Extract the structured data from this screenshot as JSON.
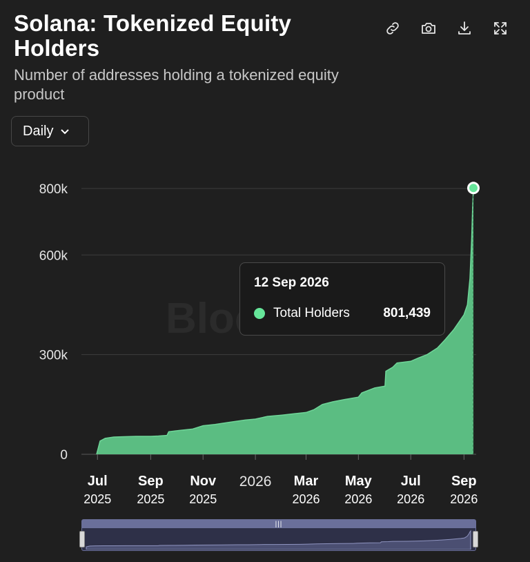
{
  "header": {
    "title": "Solana: Tokenized Equity Holders",
    "subtitle": "Number of addresses holding a tokenized equity product"
  },
  "toolbar": {
    "buttons": [
      {
        "name": "link-button",
        "icon": "link-icon"
      },
      {
        "name": "screenshot-button",
        "icon": "camera-icon"
      },
      {
        "name": "download-button",
        "icon": "download-icon"
      },
      {
        "name": "fullscreen-button",
        "icon": "expand-icon"
      }
    ]
  },
  "interval": {
    "selected": "Daily"
  },
  "watermark": "Block",
  "tooltip": {
    "date": "12 Sep 2026",
    "series": "Total Holders",
    "value": "801,439"
  },
  "chart_data": {
    "type": "area",
    "series": [
      {
        "name": "Total Holders",
        "color": "#5bbd82"
      }
    ],
    "x": [
      "2025-06-30",
      "2025-07-04",
      "2025-07-10",
      "2025-07-20",
      "2025-08-01",
      "2025-08-15",
      "2025-09-01",
      "2025-09-10",
      "2025-09-20",
      "2025-09-22",
      "2025-10-05",
      "2025-10-20",
      "2025-11-01",
      "2025-11-15",
      "2025-12-01",
      "2025-12-20",
      "2026-01-01",
      "2026-01-15",
      "2026-02-01",
      "2026-02-15",
      "2026-03-01",
      "2026-03-10",
      "2026-03-20",
      "2026-04-01",
      "2026-04-15",
      "2026-05-01",
      "2026-05-05",
      "2026-05-20",
      "2026-06-01",
      "2026-06-02",
      "2026-06-10",
      "2026-06-15",
      "2026-07-01",
      "2026-07-10",
      "2026-07-20",
      "2026-08-01",
      "2026-08-10",
      "2026-08-20",
      "2026-09-01",
      "2026-09-05",
      "2026-09-08",
      "2026-09-10",
      "2026-09-11",
      "2026-09-12"
    ],
    "y": [
      0,
      40000,
      48000,
      52000,
      53000,
      54000,
      54000,
      55000,
      57000,
      68000,
      72000,
      76000,
      86000,
      90000,
      96000,
      103000,
      106000,
      114000,
      118000,
      122000,
      126000,
      134000,
      150000,
      158000,
      165000,
      172000,
      185000,
      200000,
      205000,
      250000,
      262000,
      275000,
      280000,
      290000,
      300000,
      320000,
      345000,
      375000,
      420000,
      450000,
      530000,
      650000,
      740000,
      801439
    ],
    "yticks": [
      "0",
      "300k",
      "600k",
      "800k"
    ],
    "ytick_values": [
      0,
      300000,
      600000,
      800000
    ],
    "ylim": [
      0,
      800000
    ],
    "xticks": [
      {
        "date": "2025-07-01",
        "month": "Jul",
        "year": "2025"
      },
      {
        "date": "2025-09-01",
        "month": "Sep",
        "year": "2025"
      },
      {
        "date": "2025-11-01",
        "month": "Nov",
        "year": "2025"
      },
      {
        "date": "2026-01-01",
        "month": "2026",
        "year": ""
      },
      {
        "date": "2026-03-01",
        "month": "Mar",
        "year": "2026"
      },
      {
        "date": "2026-05-01",
        "month": "May",
        "year": "2026"
      },
      {
        "date": "2026-07-01",
        "month": "Jul",
        "year": "2026"
      },
      {
        "date": "2026-09-01",
        "month": "Sep",
        "year": "2026"
      }
    ],
    "xlim": [
      "2025-06-30",
      "2026-09-12"
    ],
    "grid": "horizontal",
    "legend": "none"
  }
}
